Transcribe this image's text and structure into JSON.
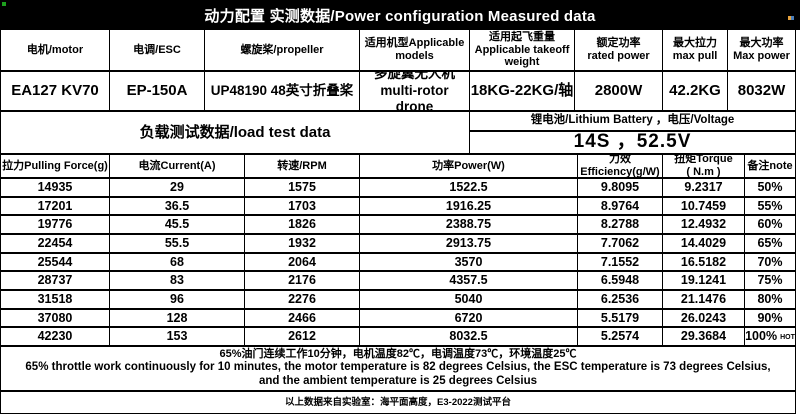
{
  "title": "动力配置 实测数据/Power configuration Measured data",
  "spec_table": {
    "headers": [
      {
        "zh": "电机/motor",
        "en": ""
      },
      {
        "zh": "电调/ESC",
        "en": ""
      },
      {
        "zh": "螺旋桨/propeller",
        "en": ""
      },
      {
        "zh": "适用机型Applicable models",
        "en": ""
      },
      {
        "zh": "适用起飞重量",
        "en": "Applicable takeoff weight"
      },
      {
        "zh": "额定功率",
        "en": "rated power"
      },
      {
        "zh": "最大拉力",
        "en": "max pull"
      },
      {
        "zh": "最大功率",
        "en": "Max power"
      }
    ],
    "values": {
      "motor": "EA127 KV70",
      "esc": "EP-150A",
      "propeller": "UP48190  48英寸折叠桨",
      "model_zh": "多旋翼无人机",
      "model_en": "multi-rotor drone",
      "takeoff_weight": "18KG-22KG/轴",
      "rated_power": "2800W",
      "max_pull": "42.2KG",
      "max_power": "8032W"
    }
  },
  "load_test": {
    "section_title": "负载测试数据/load test data",
    "battery_label": "锂电池/Lithium Battery ，电压/Voltage",
    "battery_value": "14S ，52.5V",
    "columns": [
      {
        "zh": "拉力Pulling Force(g)",
        "en": ""
      },
      {
        "zh": "电流Current(A)",
        "en": ""
      },
      {
        "zh": "转速/RPM",
        "en": ""
      },
      {
        "zh": "功率Power(W)",
        "en": ""
      },
      {
        "zh": "力效",
        "en": "Efficiency(g/W)"
      },
      {
        "zh": "扭矩Torque",
        "en": "( N.m )"
      },
      {
        "zh": "备注note",
        "en": ""
      }
    ],
    "rows": [
      [
        "14935",
        "29",
        "1575",
        "1522.5",
        "9.8095",
        "9.2317",
        "50%"
      ],
      [
        "17201",
        "36.5",
        "1703",
        "1916.25",
        "8.9764",
        "10.7459",
        "55%"
      ],
      [
        "19776",
        "45.5",
        "1826",
        "2388.75",
        "8.2788",
        "12.4932",
        "60%"
      ],
      [
        "22454",
        "55.5",
        "1932",
        "2913.75",
        "7.7062",
        "14.4029",
        "65%"
      ],
      [
        "25544",
        "68",
        "2064",
        "3570",
        "7.1552",
        "16.5182",
        "70%"
      ],
      [
        "28737",
        "83",
        "2176",
        "4357.5",
        "6.5948",
        "19.1241",
        "75%"
      ],
      [
        "31518",
        "96",
        "2276",
        "5040",
        "6.2536",
        "21.1476",
        "80%"
      ],
      [
        "37080",
        "128",
        "2466",
        "6720",
        "5.5179",
        "26.0243",
        "90%"
      ],
      [
        "42230",
        "153",
        "2612",
        "8032.5",
        "5.2574",
        "29.3684",
        "100%"
      ]
    ],
    "hot_note": "HOT"
  },
  "footer": {
    "note_zh": "65%油门连续工作10分钟，电机温度82℃，电调温度73℃，环境温度25℃",
    "note_en": "65% throttle work continuously for 10 minutes, the motor temperature is 82 degrees Celsius, the ESC temperature is 73 degrees Celsius, and the ambient temperature is 25 degrees Celsius",
    "source": "以上数据来自实验室：海平面高度，E3-2022测试平台"
  }
}
